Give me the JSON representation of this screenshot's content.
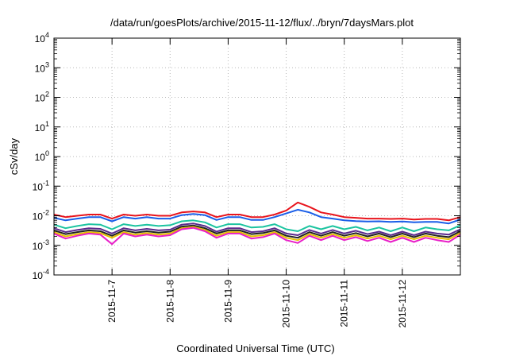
{
  "chart_data": {
    "type": "line",
    "title": "/data/run/goesPlots/archive/2015-11-12/flux/../bryn/7daysMars.plot",
    "xlabel": "Coordinated Universal Time (UTC)",
    "ylabel": "cSv/day",
    "yscale": "log",
    "ylim": [
      0.0001,
      10000
    ],
    "xlim": [
      0,
      7
    ],
    "grid": true,
    "y_ticks": [
      {
        "exp": "-4",
        "value": 0.0001
      },
      {
        "exp": "-3",
        "value": 0.001
      },
      {
        "exp": "-2",
        "value": 0.01
      },
      {
        "exp": "-1",
        "value": 0.1
      },
      {
        "exp": "0",
        "value": 1
      },
      {
        "exp": "1",
        "value": 10
      },
      {
        "exp": "2",
        "value": 100
      },
      {
        "exp": "3",
        "value": 1000
      },
      {
        "exp": "4",
        "value": 10000
      }
    ],
    "x_ticks": [
      {
        "label": "2015-11-7",
        "value": 1
      },
      {
        "label": "2015-11-8",
        "value": 2
      },
      {
        "label": "2015-11-9",
        "value": 3
      },
      {
        "label": "2015-11-10",
        "value": 4
      },
      {
        "label": "2015-11-11",
        "value": 5
      },
      {
        "label": "2015-11-12",
        "value": 6
      }
    ],
    "x": [
      0,
      0.2,
      0.4,
      0.6,
      0.8,
      1.0,
      1.2,
      1.4,
      1.6,
      1.8,
      2.0,
      2.2,
      2.4,
      2.6,
      2.8,
      3.0,
      3.2,
      3.4,
      3.6,
      3.8,
      4.0,
      4.2,
      4.4,
      4.6,
      4.8,
      5.0,
      5.2,
      5.4,
      5.6,
      5.8,
      6.0,
      6.2,
      6.4,
      6.6,
      6.8,
      7.0
    ],
    "series": [
      {
        "name": "red",
        "color": "#e8141c",
        "values": [
          0.011,
          0.009,
          0.01,
          0.011,
          0.011,
          0.008,
          0.011,
          0.01,
          0.011,
          0.01,
          0.01,
          0.013,
          0.014,
          0.013,
          0.009,
          0.011,
          0.011,
          0.009,
          0.009,
          0.011,
          0.015,
          0.028,
          0.02,
          0.013,
          0.011,
          0.009,
          0.0085,
          0.008,
          0.008,
          0.0078,
          0.008,
          0.0075,
          0.0078,
          0.0078,
          0.007,
          0.009
        ]
      },
      {
        "name": "blue",
        "color": "#1a5ee8",
        "values": [
          0.0085,
          0.007,
          0.008,
          0.009,
          0.009,
          0.0065,
          0.009,
          0.008,
          0.009,
          0.008,
          0.008,
          0.0105,
          0.0115,
          0.0105,
          0.0072,
          0.009,
          0.009,
          0.0072,
          0.0072,
          0.009,
          0.012,
          0.016,
          0.013,
          0.009,
          0.008,
          0.007,
          0.0066,
          0.0064,
          0.0065,
          0.0062,
          0.0064,
          0.006,
          0.0062,
          0.0062,
          0.0055,
          0.0075
        ]
      },
      {
        "name": "teal",
        "color": "#1cc4a0",
        "values": [
          0.005,
          0.0038,
          0.0045,
          0.0052,
          0.005,
          0.0035,
          0.0052,
          0.0045,
          0.005,
          0.0045,
          0.0048,
          0.0065,
          0.007,
          0.006,
          0.004,
          0.0052,
          0.0052,
          0.004,
          0.0042,
          0.0052,
          0.0035,
          0.003,
          0.0045,
          0.0035,
          0.0045,
          0.0035,
          0.0042,
          0.0032,
          0.004,
          0.003,
          0.004,
          0.003,
          0.004,
          0.0035,
          0.0032,
          0.0048
        ]
      },
      {
        "name": "purple",
        "color": "#5a2a8c",
        "values": [
          0.0038,
          0.0028,
          0.0033,
          0.0038,
          0.0036,
          0.0025,
          0.0038,
          0.0032,
          0.0036,
          0.0032,
          0.0034,
          0.005,
          0.0055,
          0.0045,
          0.0029,
          0.0038,
          0.0038,
          0.0028,
          0.003,
          0.0038,
          0.0025,
          0.0022,
          0.0033,
          0.0025,
          0.0033,
          0.0025,
          0.0031,
          0.0024,
          0.0029,
          0.0022,
          0.0029,
          0.0022,
          0.0029,
          0.0025,
          0.0023,
          0.0035
        ]
      },
      {
        "name": "black",
        "color": "#222222",
        "values": [
          0.0032,
          0.0024,
          0.0028,
          0.0032,
          0.003,
          0.0021,
          0.0032,
          0.0027,
          0.003,
          0.0027,
          0.0029,
          0.0043,
          0.0047,
          0.0038,
          0.0025,
          0.0032,
          0.0032,
          0.0024,
          0.0026,
          0.0032,
          0.0021,
          0.0018,
          0.0028,
          0.0021,
          0.0028,
          0.0021,
          0.0026,
          0.002,
          0.0025,
          0.0019,
          0.0025,
          0.0019,
          0.0025,
          0.0021,
          0.0019,
          0.003
        ]
      },
      {
        "name": "yellow",
        "color": "#e6c000",
        "values": [
          0.0028,
          0.002,
          0.0024,
          0.0028,
          0.0026,
          0.0018,
          0.0028,
          0.0023,
          0.0026,
          0.0023,
          0.0025,
          0.0038,
          0.0042,
          0.0033,
          0.0021,
          0.0028,
          0.0028,
          0.002,
          0.0022,
          0.0028,
          0.0018,
          0.0015,
          0.0024,
          0.0018,
          0.0024,
          0.0018,
          0.0022,
          0.0017,
          0.0021,
          0.0016,
          0.0021,
          0.0016,
          0.0021,
          0.0018,
          0.0016,
          0.0026
        ]
      },
      {
        "name": "magenta",
        "color": "#e81ec8",
        "values": [
          0.0025,
          0.0017,
          0.0021,
          0.0025,
          0.0023,
          0.0011,
          0.0025,
          0.002,
          0.0023,
          0.002,
          0.0022,
          0.0035,
          0.0039,
          0.003,
          0.0018,
          0.0025,
          0.0025,
          0.0017,
          0.0019,
          0.0025,
          0.0015,
          0.0012,
          0.0021,
          0.0015,
          0.0021,
          0.0015,
          0.0019,
          0.0014,
          0.0018,
          0.0013,
          0.0018,
          0.0013,
          0.0018,
          0.0015,
          0.0013,
          0.0023
        ]
      }
    ]
  }
}
